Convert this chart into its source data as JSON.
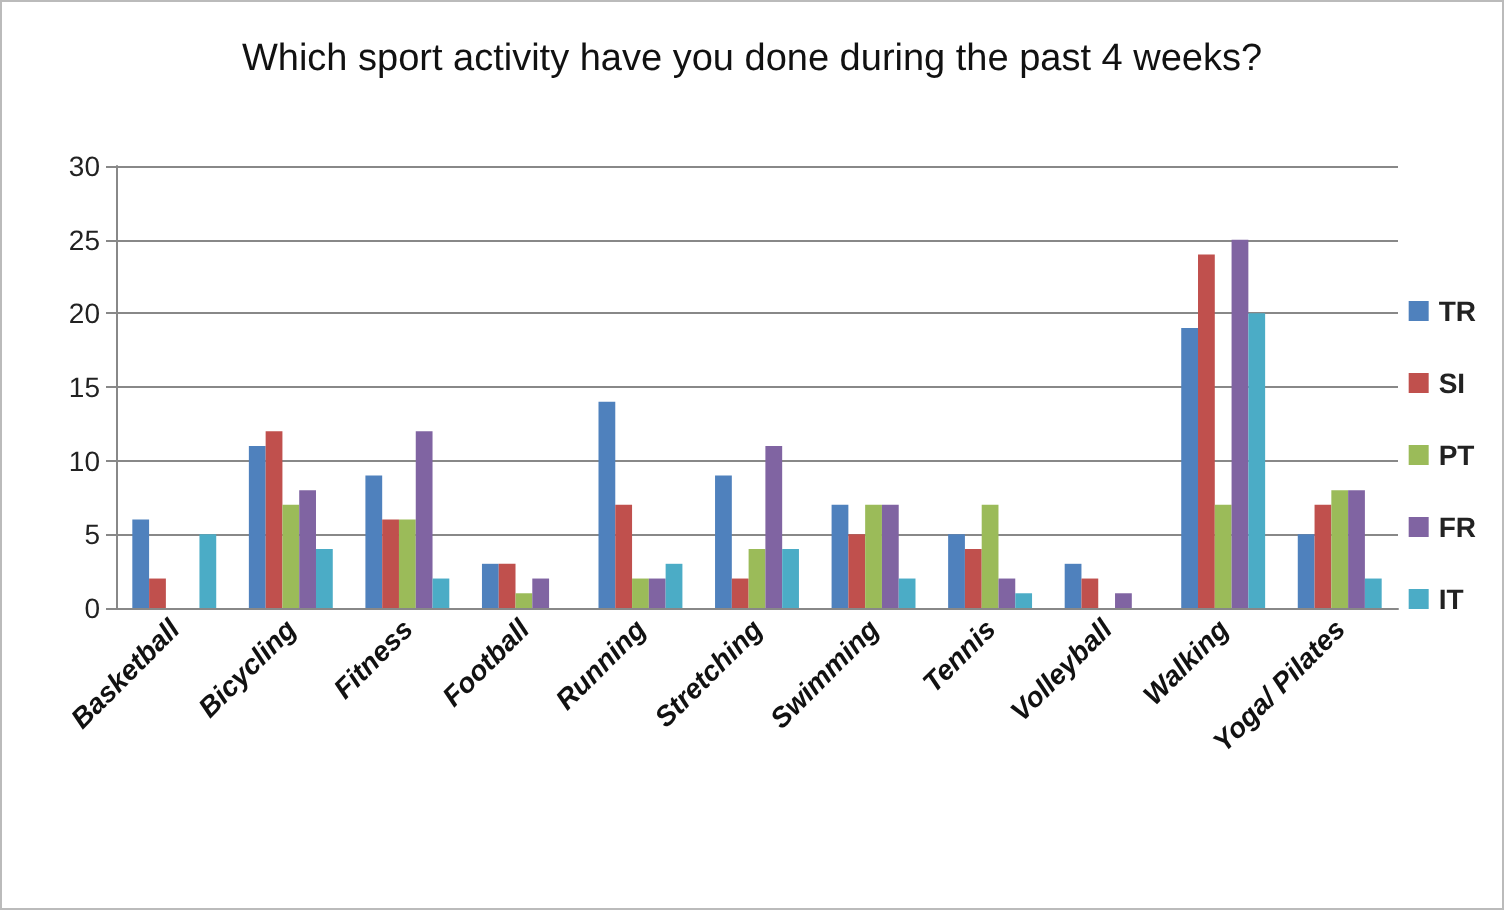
{
  "chart_data": {
    "type": "bar",
    "title": "Which sport activity have you done during the past 4 weeks?",
    "categories": [
      "Basketball",
      "Bicycling",
      "Fitness",
      "Football",
      "Running",
      "Stretching",
      "Swimming",
      "Tennis",
      "Volleyball",
      "Walking",
      "Yoga/ Pilates"
    ],
    "series": [
      {
        "name": "TR",
        "color": "#4f81bd",
        "values": [
          6,
          11,
          9,
          3,
          14,
          9,
          7,
          5,
          3,
          19,
          5
        ]
      },
      {
        "name": "SI",
        "color": "#c0504d",
        "values": [
          2,
          12,
          6,
          3,
          7,
          2,
          5,
          4,
          2,
          24,
          7
        ]
      },
      {
        "name": "PT",
        "color": "#9bbb59",
        "values": [
          0,
          7,
          6,
          1,
          2,
          4,
          7,
          7,
          0,
          7,
          8
        ]
      },
      {
        "name": "FR",
        "color": "#8064a2",
        "values": [
          0,
          8,
          12,
          2,
          2,
          11,
          7,
          2,
          1,
          25,
          8
        ]
      },
      {
        "name": "IT",
        "color": "#4bacc6",
        "values": [
          5,
          4,
          2,
          0,
          3,
          4,
          2,
          1,
          0,
          20,
          2
        ]
      }
    ],
    "ylim": [
      0,
      30
    ],
    "yticks": [
      0,
      5,
      10,
      15,
      20,
      25,
      30
    ],
    "grid": "y",
    "legend": "right"
  }
}
